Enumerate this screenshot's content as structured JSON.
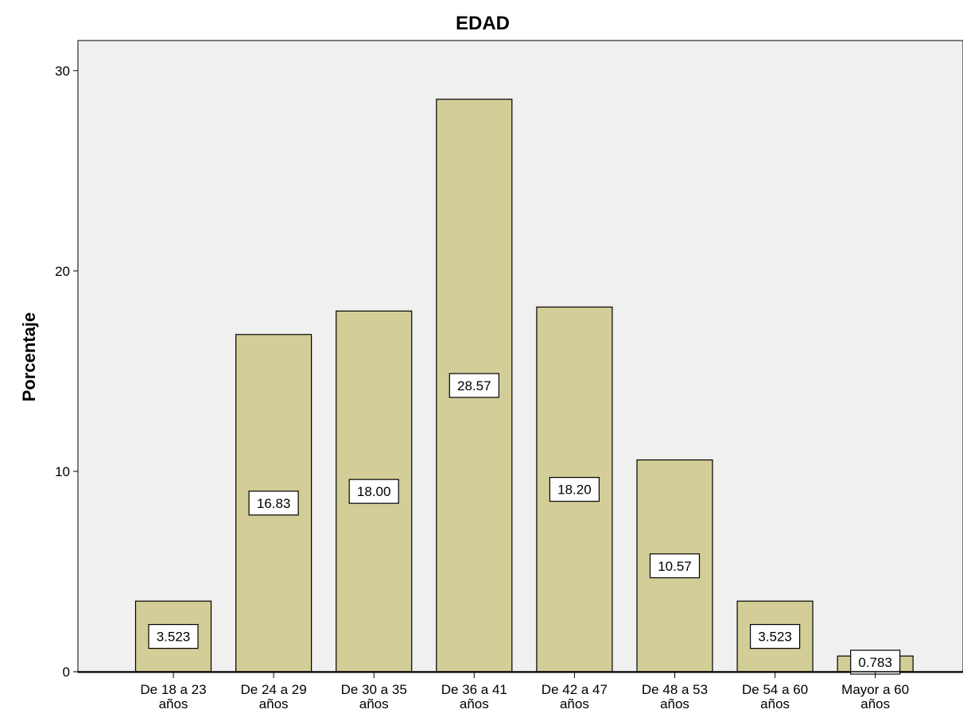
{
  "chart_data": {
    "type": "bar",
    "title": "EDAD",
    "xlabel": "",
    "ylabel": "Porcentaje",
    "ylim": [
      0,
      31.5
    ],
    "yticks": [
      0,
      10,
      20,
      30
    ],
    "grid": false,
    "categories": [
      [
        "De 18 a 23",
        "años"
      ],
      [
        "De 24 a 29",
        "años"
      ],
      [
        "De 30 a 35",
        "años"
      ],
      [
        "De 36 a 41",
        "años"
      ],
      [
        "De 42 a 47",
        "años"
      ],
      [
        "De 48 a 53",
        "años"
      ],
      [
        "De 54 a 60",
        "años"
      ],
      [
        "Mayor a 60",
        "años"
      ]
    ],
    "values": [
      3.523,
      16.83,
      18.0,
      28.57,
      18.2,
      10.57,
      3.523,
      0.783
    ],
    "value_labels": [
      "3.523",
      "16.83",
      "18.00",
      "28.57",
      "18.20",
      "10.57",
      "3.523",
      "0.783"
    ],
    "colors": {
      "bar_fill": "#d3cd98",
      "bar_stroke": "#000000",
      "plot_background": "#f0f0f0",
      "axis": "#000000",
      "label_box": "#ffffff"
    }
  }
}
